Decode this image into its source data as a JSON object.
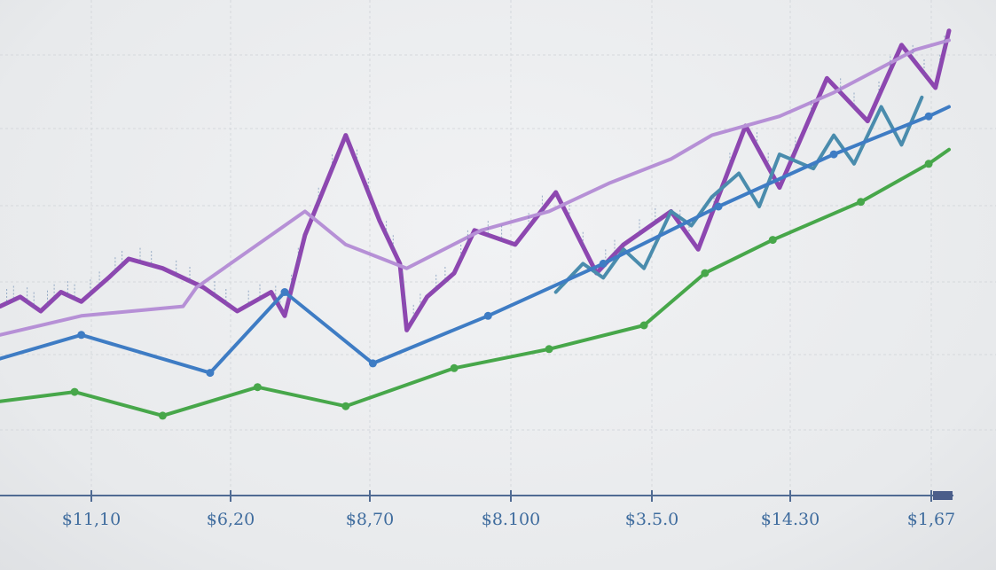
{
  "chart_data": {
    "type": "line",
    "title": "",
    "xlabel": "",
    "ylabel": "",
    "x_tick_labels": [
      "$11,10",
      "$6,20",
      "$8,70",
      "$8.100",
      "$3.5.0",
      "$14.30",
      "$1,67"
    ],
    "xlim": [
      0,
      7
    ],
    "ylim": [
      0,
      100
    ],
    "grid": true,
    "legend": "none",
    "series": [
      {
        "color": "#8d47b0",
        "stroke": 5,
        "x": [
          0,
          0.15,
          0.3,
          0.45,
          0.6,
          0.8,
          0.95,
          1.2,
          1.5,
          1.75,
          2.0,
          2.1,
          2.25,
          2.55,
          2.8,
          2.95,
          3.0,
          3.15,
          3.35,
          3.5,
          3.8,
          4.1,
          4.4,
          4.6,
          4.95,
          5.15,
          5.5,
          5.75,
          6.1,
          6.4,
          6.65,
          6.9,
          7.0
        ],
        "y": [
          40,
          42,
          39,
          43,
          41,
          46,
          50,
          48,
          44,
          39,
          43,
          38,
          55,
          76,
          58,
          49,
          35,
          42,
          47,
          56,
          53,
          64,
          47,
          53,
          60,
          52,
          78,
          65,
          88,
          79,
          95,
          86,
          98
        ]
      },
      {
        "color": "#4a8cad",
        "stroke": 4,
        "x": [
          4.1,
          4.3,
          4.45,
          4.6,
          4.75,
          4.95,
          5.1,
          5.25,
          5.45,
          5.6,
          5.75,
          6.0,
          6.15,
          6.3,
          6.5,
          6.65,
          6.8
        ],
        "y": [
          43,
          49,
          46,
          52,
          48,
          60,
          57,
          63,
          68,
          61,
          72,
          69,
          76,
          70,
          82,
          74,
          84
        ]
      },
      {
        "color": "#b690d6",
        "stroke": 4,
        "x": [
          0,
          0.6,
          1.35,
          1.45,
          2.25,
          2.55,
          3.0,
          3.55,
          4.05,
          4.5,
          4.95,
          5.25,
          5.75,
          6.15,
          6.75,
          7.0
        ],
        "y": [
          34,
          38,
          40,
          44,
          60,
          53,
          48,
          56,
          60,
          66,
          71,
          76,
          80,
          85,
          94,
          96
        ]
      },
      {
        "color": "#3e7cc4",
        "stroke": 4,
        "x": [
          0,
          0.6,
          1.55,
          2.1,
          2.75,
          3.6,
          4.45,
          5.3,
          6.15,
          6.85,
          7.0
        ],
        "y": [
          29,
          34,
          26,
          43,
          28,
          38,
          49,
          61,
          72,
          80,
          82
        ]
      },
      {
        "color": "#47a74a",
        "stroke": 4,
        "x": [
          0,
          0.55,
          1.2,
          1.9,
          2.55,
          3.35,
          4.05,
          4.75,
          5.2,
          5.7,
          6.35,
          6.85,
          7.0
        ],
        "y": [
          20,
          22,
          17,
          23,
          19,
          27,
          31,
          36,
          47,
          54,
          62,
          70,
          73
        ]
      }
    ]
  }
}
